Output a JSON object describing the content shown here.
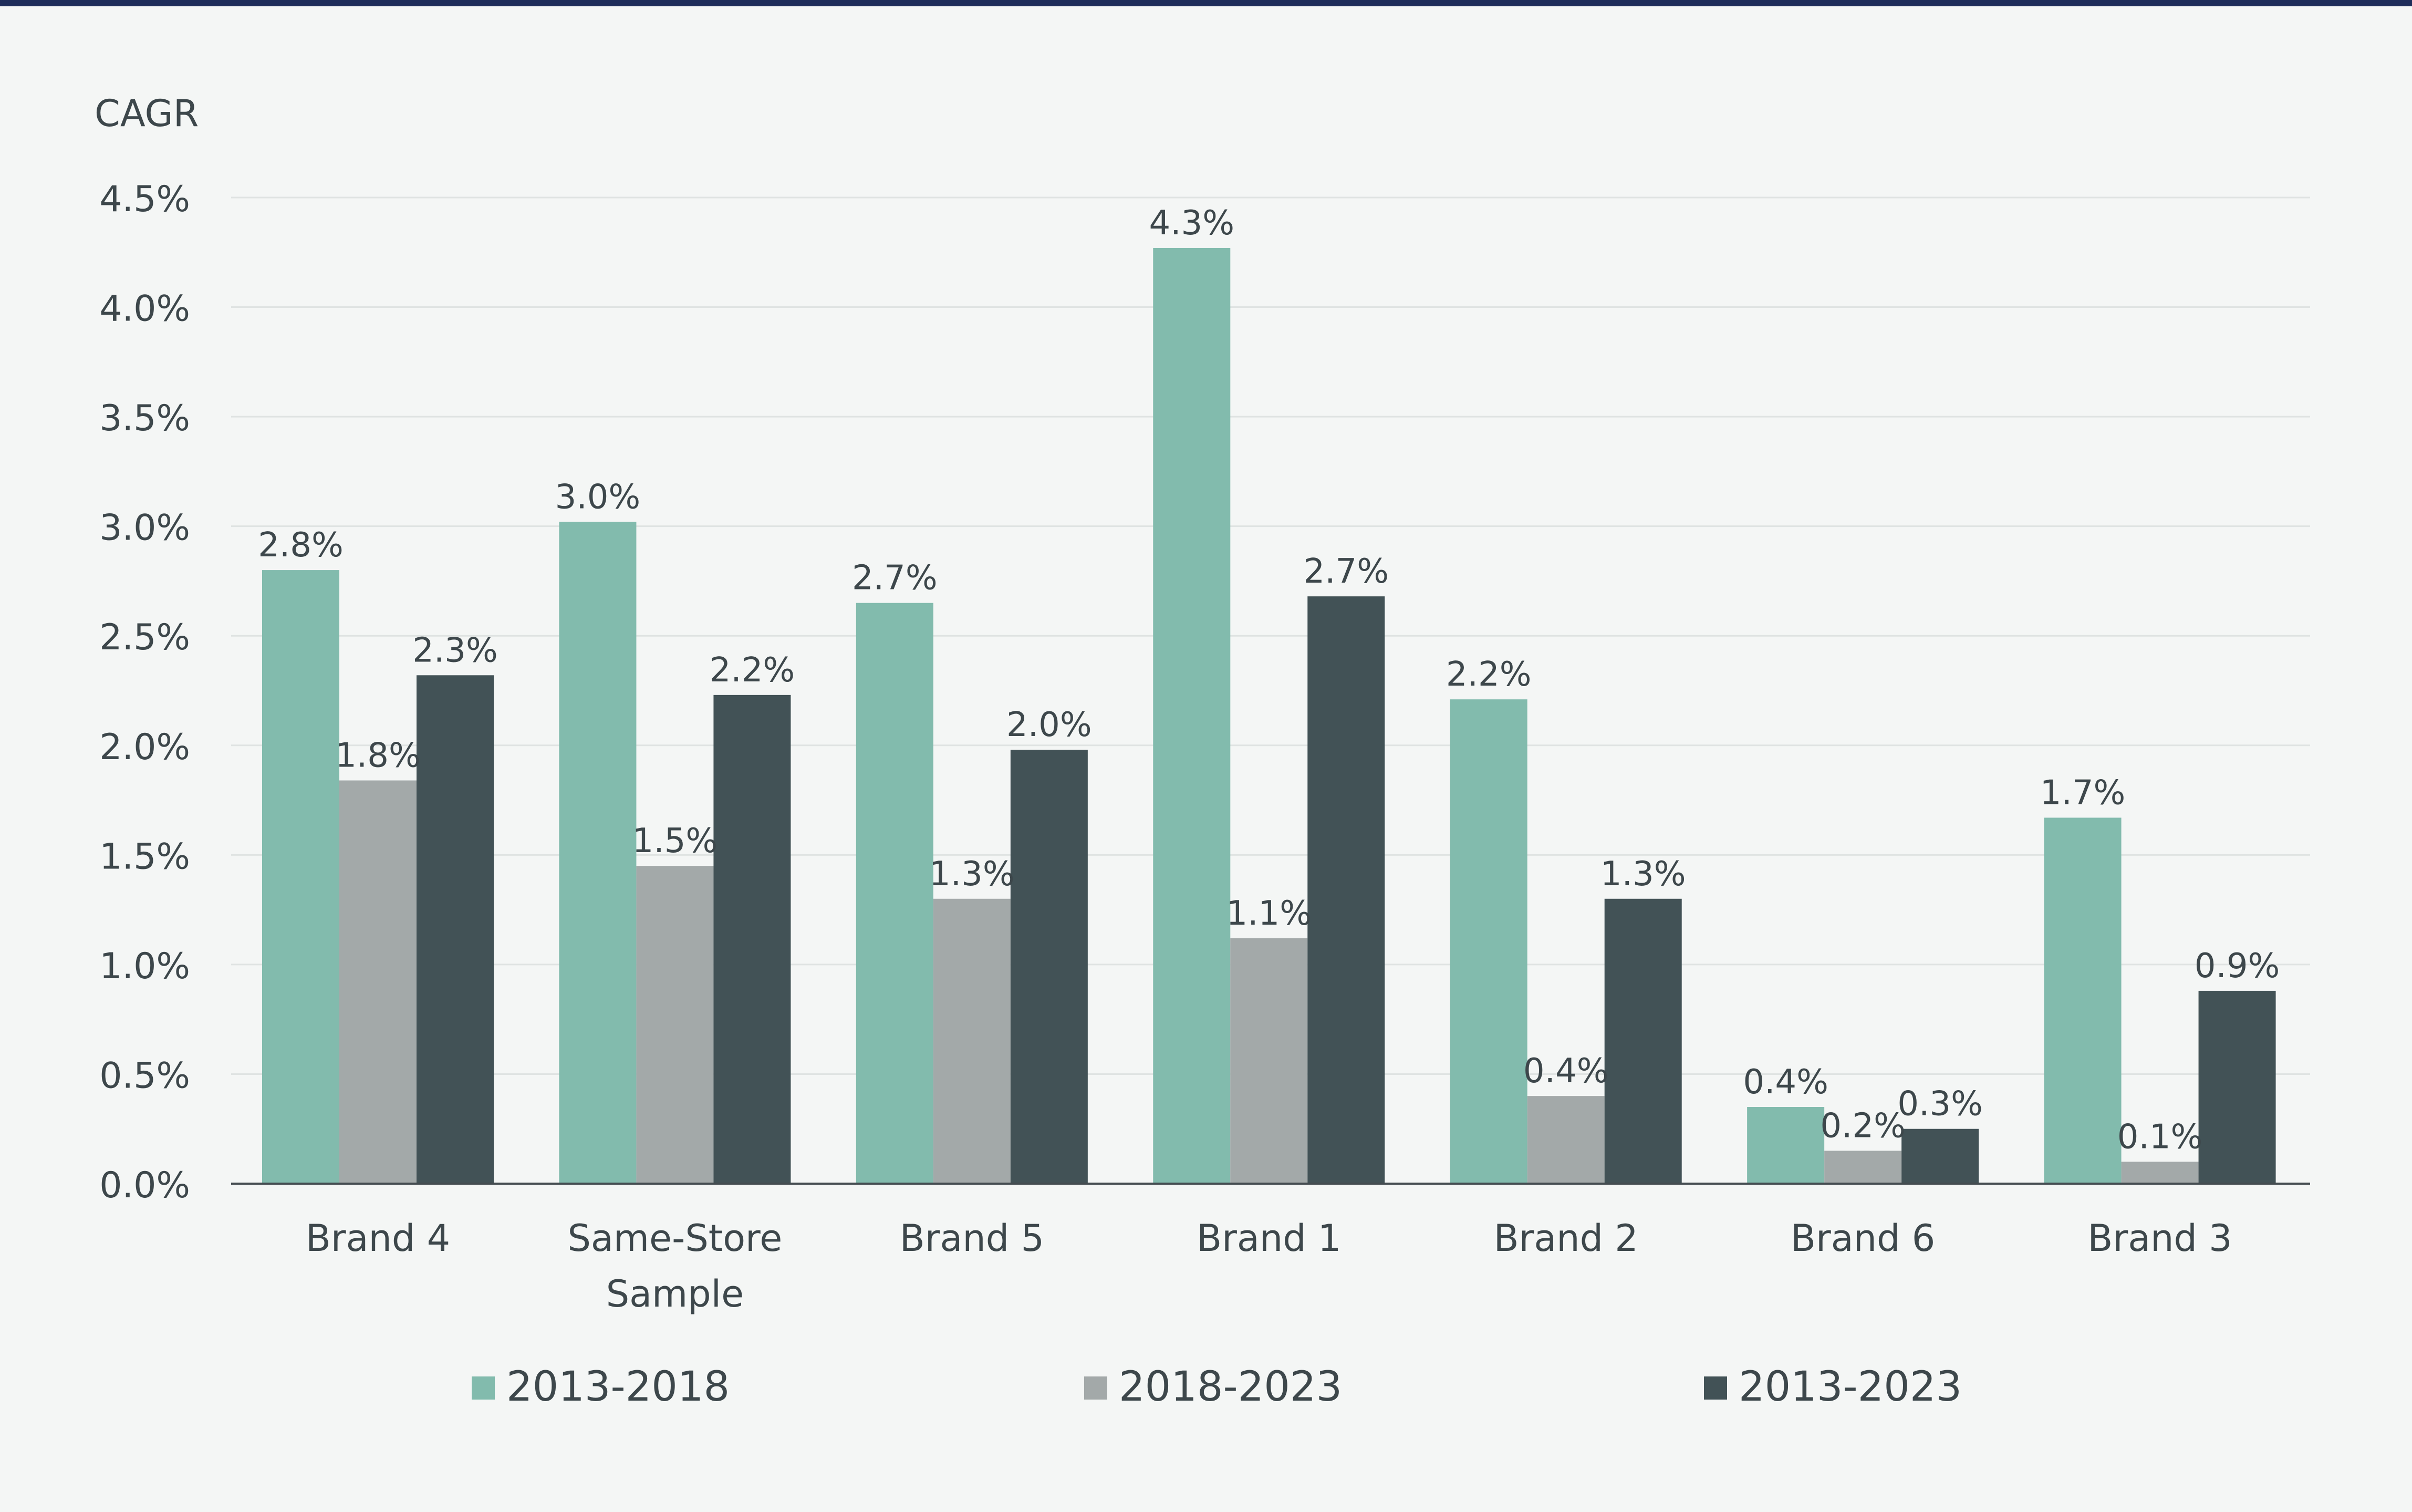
{
  "colors": {
    "top_rule": "#1e2d5a",
    "background": "#f4f6f5",
    "grid": "#dfe3e2",
    "axis": "#444c50",
    "text": "#3d474b"
  },
  "chart_data": {
    "type": "bar",
    "title": "",
    "xlabel": "",
    "ylabel": "CAGR",
    "ylim": [
      0,
      4.5
    ],
    "yticks": [
      0.0,
      0.5,
      1.0,
      1.5,
      2.0,
      2.5,
      3.0,
      3.5,
      4.0,
      4.5
    ],
    "ytick_labels": [
      "0.0%",
      "0.5%",
      "1.0%",
      "1.5%",
      "2.0%",
      "2.5%",
      "3.0%",
      "3.5%",
      "4.0%",
      "4.5%"
    ],
    "grid": true,
    "legend_position": "bottom",
    "categories": [
      [
        "Brand 4"
      ],
      [
        "Same-Store",
        "Sample"
      ],
      [
        "Brand 5"
      ],
      [
        "Brand 1"
      ],
      [
        "Brand 2"
      ],
      [
        "Brand 6"
      ],
      [
        "Brand 3"
      ]
    ],
    "series": [
      {
        "name": "2013-2018",
        "color": "#82bbad",
        "values": [
          2.8,
          3.02,
          2.65,
          4.27,
          2.21,
          0.35,
          1.67
        ],
        "labels": [
          "2.8%",
          "3.0%",
          "2.7%",
          "4.3%",
          "2.2%",
          "0.4%",
          "1.7%"
        ]
      },
      {
        "name": "2018-2023",
        "color": "#a3a9a9",
        "values": [
          1.84,
          1.45,
          1.3,
          1.12,
          0.4,
          0.15,
          0.1
        ],
        "labels": [
          "1.8%",
          "1.5%",
          "1.3%",
          "1.1%",
          "0.4%",
          "0.2%",
          "0.1%"
        ]
      },
      {
        "name": "2013-2023",
        "color": "#425256",
        "values": [
          2.32,
          2.23,
          1.98,
          2.68,
          1.3,
          0.25,
          0.88
        ],
        "labels": [
          "2.3%",
          "2.2%",
          "2.0%",
          "2.7%",
          "1.3%",
          "0.3%",
          "0.9%"
        ]
      }
    ]
  }
}
